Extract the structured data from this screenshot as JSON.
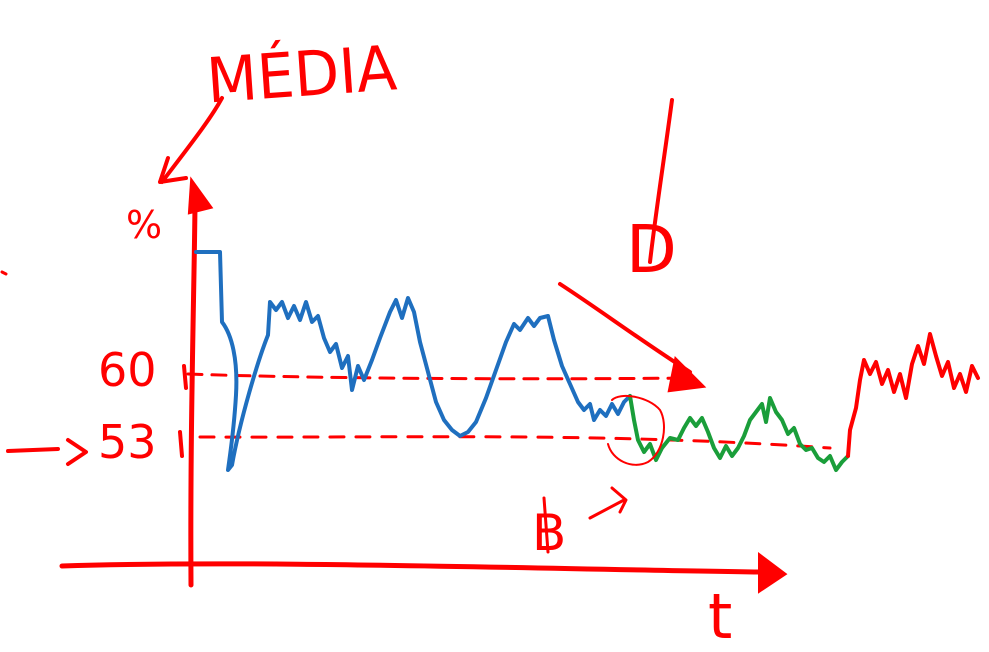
{
  "colors": {
    "annotation": "#ff0000",
    "series_before": "#1f6fbf",
    "series_after": "#1a9e3a",
    "background": "#ffffff"
  },
  "labels": {
    "title": "MÉDIA",
    "y_axis": "%",
    "x_axis": "t",
    "level_high": "60",
    "level_low": "53",
    "marker_d": "D",
    "marker_b": "B"
  },
  "chart_data": {
    "type": "line",
    "reference_lines": [
      {
        "label": "60",
        "style": "dashed"
      },
      {
        "label": "53",
        "style": "dashed"
      }
    ],
    "series": [
      {
        "color": "#1f6fbf"
      },
      {
        "color": "#1a9e3a"
      },
      {
        "color": "#ff0000"
      }
    ]
  }
}
